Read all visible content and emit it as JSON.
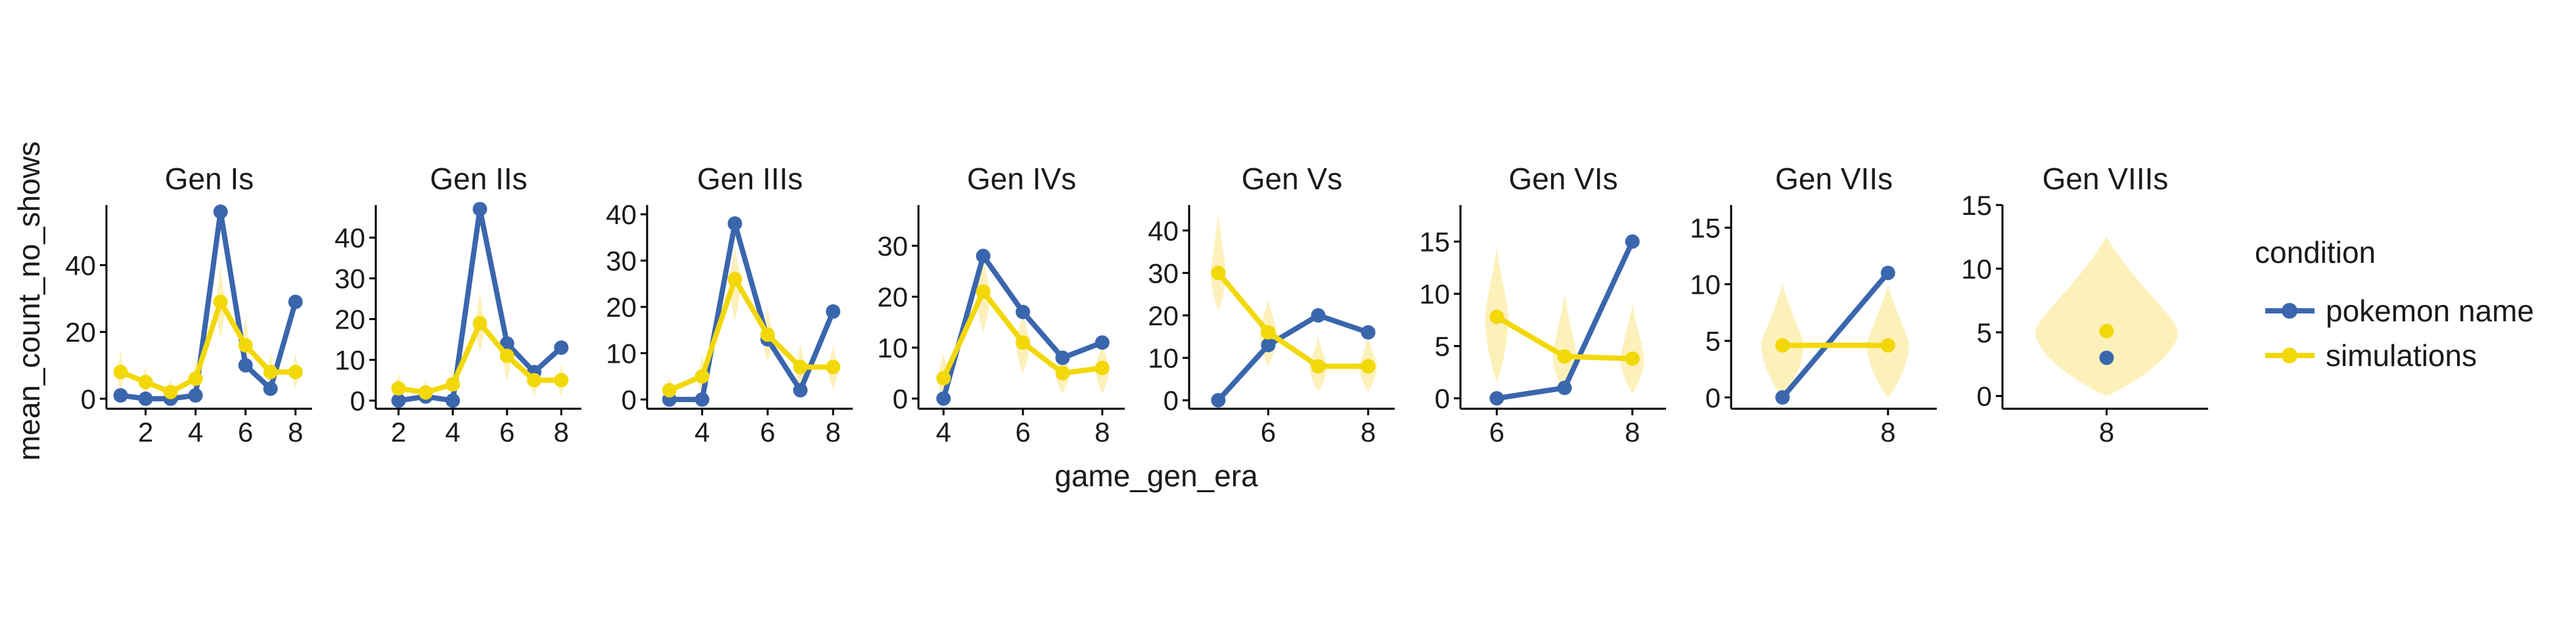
{
  "chart_data": {
    "type": "line",
    "xlabel": "game_gen_era",
    "ylabel": "mean_count_no_shows",
    "legend": {
      "title": "condition",
      "position": "right",
      "entries": [
        "pokemon name",
        "simulations"
      ]
    },
    "colors": {
      "pokemon name": "#3a66ad",
      "simulations": "#f2d808",
      "violin": "#fdf0b4"
    },
    "grid": false,
    "panels": [
      {
        "title": "Gen Is",
        "xlim": [
          0.8,
          8.4
        ],
        "xticks": [
          2,
          4,
          6,
          8
        ],
        "ylim": [
          -3,
          58
        ],
        "yticks": [
          0,
          20,
          40
        ],
        "series": [
          {
            "name": "pokemon name",
            "x": [
              1,
              2,
              3,
              4,
              5,
              6,
              7,
              8
            ],
            "y": [
              1,
              0,
              0,
              1,
              56,
              10,
              3,
              29
            ]
          },
          {
            "name": "simulations",
            "x": [
              1,
              2,
              3,
              4,
              5,
              6,
              7,
              8
            ],
            "y": [
              8,
              5,
              2,
              6,
              29,
              16,
              8,
              8
            ]
          }
        ],
        "violins": [
          {
            "x": 1,
            "center": 8,
            "low": 2,
            "high": 15,
            "width": 0.25
          },
          {
            "x": 2,
            "center": 5,
            "low": 1,
            "high": 10,
            "width": 0.25
          },
          {
            "x": 3,
            "center": 2,
            "low": 0,
            "high": 6,
            "width": 0.25
          },
          {
            "x": 4,
            "center": 6,
            "low": 1,
            "high": 12,
            "width": 0.25
          },
          {
            "x": 5,
            "center": 29,
            "low": 18,
            "high": 40,
            "width": 0.35
          },
          {
            "x": 6,
            "center": 16,
            "low": 8,
            "high": 25,
            "width": 0.3
          },
          {
            "x": 7,
            "center": 8,
            "low": 3,
            "high": 14,
            "width": 0.25
          },
          {
            "x": 8,
            "center": 8,
            "low": 3,
            "high": 14,
            "width": 0.25
          }
        ]
      },
      {
        "title": "Gen IIs",
        "xlim": [
          1.5,
          8.5
        ],
        "xticks": [
          2,
          4,
          6,
          8
        ],
        "ylim": [
          -2,
          48
        ],
        "yticks": [
          0,
          10,
          20,
          30,
          40
        ],
        "series": [
          {
            "name": "pokemon name",
            "x": [
              2,
              3,
              4,
              5,
              6,
              7,
              8
            ],
            "y": [
              0,
              1,
              0,
              47,
              14,
              7,
              13
            ]
          },
          {
            "name": "simulations",
            "x": [
              2,
              3,
              4,
              5,
              6,
              7,
              8
            ],
            "y": [
              3,
              2,
              4,
              19,
              11,
              5,
              5
            ]
          }
        ],
        "violins": [
          {
            "x": 2,
            "center": 3,
            "low": 0,
            "high": 7,
            "width": 0.25
          },
          {
            "x": 3,
            "center": 2,
            "low": 0,
            "high": 5,
            "width": 0.25
          },
          {
            "x": 4,
            "center": 4,
            "low": 0,
            "high": 8,
            "width": 0.25
          },
          {
            "x": 5,
            "center": 19,
            "low": 12,
            "high": 27,
            "width": 0.35
          },
          {
            "x": 6,
            "center": 11,
            "low": 5,
            "high": 17,
            "width": 0.3
          },
          {
            "x": 7,
            "center": 5,
            "low": 1,
            "high": 9,
            "width": 0.25
          },
          {
            "x": 8,
            "center": 5,
            "low": 1,
            "high": 9,
            "width": 0.25
          }
        ]
      },
      {
        "title": "Gen IIIs",
        "xlim": [
          2.6,
          8.4
        ],
        "xticks": [
          4,
          6,
          8
        ],
        "ylim": [
          -2,
          42
        ],
        "yticks": [
          0,
          10,
          20,
          30,
          40
        ],
        "series": [
          {
            "name": "pokemon name",
            "x": [
              3,
              4,
              5,
              6,
              7,
              8
            ],
            "y": [
              0,
              0,
              38,
              13,
              2,
              19
            ]
          },
          {
            "name": "simulations",
            "x": [
              3,
              4,
              5,
              6,
              7,
              8
            ],
            "y": [
              2,
              5,
              26,
              14,
              7,
              7
            ]
          }
        ],
        "violins": [
          {
            "x": 3,
            "center": 2,
            "low": 0,
            "high": 5,
            "width": 0.25
          },
          {
            "x": 4,
            "center": 5,
            "low": 1,
            "high": 10,
            "width": 0.25
          },
          {
            "x": 5,
            "center": 26,
            "low": 17,
            "high": 33,
            "width": 0.35
          },
          {
            "x": 6,
            "center": 14,
            "low": 8,
            "high": 20,
            "width": 0.3
          },
          {
            "x": 7,
            "center": 7,
            "low": 2,
            "high": 12,
            "width": 0.3
          },
          {
            "x": 8,
            "center": 7,
            "low": 2,
            "high": 12,
            "width": 0.3
          }
        ]
      },
      {
        "title": "Gen IVs",
        "xlim": [
          3.6,
          8.4
        ],
        "xticks": [
          4,
          6,
          8
        ],
        "ylim": [
          -2,
          38
        ],
        "yticks": [
          0,
          10,
          20,
          30
        ],
        "series": [
          {
            "name": "pokemon name",
            "x": [
              4,
              5,
              6,
              7,
              8
            ],
            "y": [
              0,
              28,
              17,
              8,
              11
            ]
          },
          {
            "name": "simulations",
            "x": [
              4,
              5,
              6,
              7,
              8
            ],
            "y": [
              4,
              21,
              11,
              5,
              6
            ]
          }
        ],
        "violins": [
          {
            "x": 4,
            "center": 4,
            "low": 0,
            "high": 9,
            "width": 0.3
          },
          {
            "x": 5,
            "center": 21,
            "low": 13,
            "high": 28,
            "width": 0.35
          },
          {
            "x": 6,
            "center": 11,
            "low": 5,
            "high": 17,
            "width": 0.35
          },
          {
            "x": 7,
            "center": 5,
            "low": 1,
            "high": 10,
            "width": 0.35
          },
          {
            "x": 8,
            "center": 6,
            "low": 1,
            "high": 11,
            "width": 0.35
          }
        ]
      },
      {
        "title": "Gen Vs",
        "xlim": [
          4.6,
          8.4
        ],
        "xticks": [
          6,
          8
        ],
        "ylim": [
          -2,
          46
        ],
        "yticks": [
          0,
          10,
          20,
          30,
          40
        ],
        "series": [
          {
            "name": "pokemon name",
            "x": [
              5,
              6,
              7,
              8
            ],
            "y": [
              0,
              13,
              20,
              16
            ]
          },
          {
            "name": "simulations",
            "x": [
              5,
              6,
              7,
              8
            ],
            "y": [
              30,
              16,
              8,
              8
            ]
          }
        ],
        "violins": [
          {
            "x": 5,
            "center": 30,
            "low": 21,
            "high": 44,
            "width": 0.3
          },
          {
            "x": 6,
            "center": 16,
            "low": 8,
            "high": 24,
            "width": 0.35
          },
          {
            "x": 7,
            "center": 8,
            "low": 2,
            "high": 15,
            "width": 0.35
          },
          {
            "x": 8,
            "center": 8,
            "low": 2,
            "high": 15,
            "width": 0.35
          }
        ]
      },
      {
        "title": "Gen VIs",
        "xlim": [
          5.6,
          8.4
        ],
        "xticks": [
          6,
          8
        ],
        "ylim": [
          -1,
          18.5
        ],
        "yticks": [
          0,
          5,
          10,
          15
        ],
        "series": [
          {
            "name": "pokemon name",
            "x": [
              6,
              7,
              8
            ],
            "y": [
              0,
              1,
              15
            ]
          },
          {
            "name": "simulations",
            "x": [
              6,
              7,
              8
            ],
            "y": [
              7.8,
              4,
              3.8
            ]
          }
        ],
        "violins": [
          {
            "x": 6,
            "center": 7.8,
            "low": 1.5,
            "high": 14.5,
            "width": 0.35
          },
          {
            "x": 7,
            "center": 4,
            "low": 0.5,
            "high": 10,
            "width": 0.35
          },
          {
            "x": 8,
            "center": 3.8,
            "low": 0.5,
            "high": 9,
            "width": 0.35
          }
        ]
      },
      {
        "title": "Gen VIIs",
        "xlim": [
          6.6,
          8.4
        ],
        "xticks": [
          8
        ],
        "ylim": [
          -1,
          17
        ],
        "yticks": [
          0,
          5,
          10,
          15
        ],
        "series": [
          {
            "name": "pokemon name",
            "x": [
              7,
              8
            ],
            "y": [
              0,
              11
            ]
          },
          {
            "name": "simulations",
            "x": [
              7,
              8
            ],
            "y": [
              4.6,
              4.6
            ]
          }
        ],
        "violins": [
          {
            "x": 7,
            "center": 4.6,
            "low": 0,
            "high": 10,
            "width": 0.4
          },
          {
            "x": 8,
            "center": 4.6,
            "low": 0,
            "high": 10,
            "width": 0.4
          }
        ]
      },
      {
        "title": "Gen VIIIs",
        "xlim": [
          7.4,
          8.6
        ],
        "xticks": [
          8
        ],
        "ylim": [
          -1,
          15
        ],
        "yticks": [
          0,
          5,
          10,
          15
        ],
        "series": [
          {
            "name": "pokemon name",
            "x": [
              8
            ],
            "y": [
              3
            ]
          },
          {
            "name": "simulations",
            "x": [
              8
            ],
            "y": [
              5.1
            ]
          }
        ],
        "violins": [
          {
            "x": 8,
            "center": 5,
            "low": 0,
            "high": 12.5,
            "width": 0.9
          }
        ]
      }
    ]
  }
}
